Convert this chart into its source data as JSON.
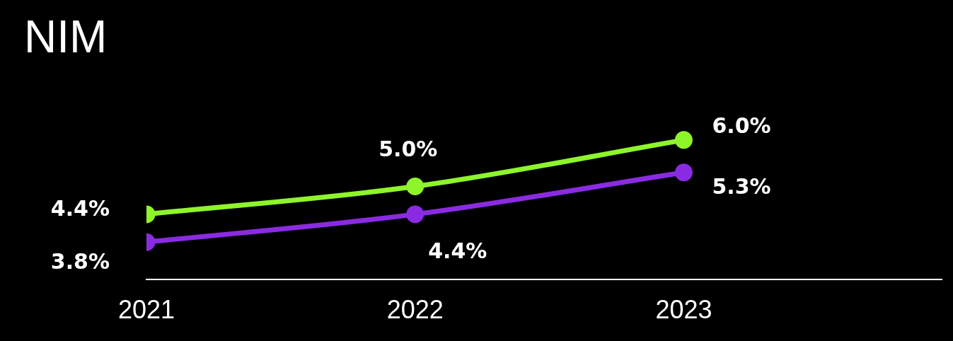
{
  "chart_data": {
    "type": "line",
    "title": "NIM",
    "x": [
      2021,
      2022,
      2023
    ],
    "xlim": [
      2021,
      2023.96
    ],
    "xticks": [
      2021,
      2022,
      2023
    ],
    "tick_labels": "x",
    "grid": false,
    "legend": false,
    "marker": "circle",
    "line_style": "solid",
    "series": [
      {
        "color": "#8ef52a",
        "values": [
          4.4,
          5.0,
          6.0
        ],
        "value_labels": [
          "4.4%",
          "5.0%",
          "6.0%"
        ]
      },
      {
        "color": "#8a2be2",
        "values": [
          3.8,
          4.4,
          5.3
        ],
        "value_labels": [
          "3.8%",
          "4.4%",
          "5.3%"
        ]
      }
    ]
  }
}
